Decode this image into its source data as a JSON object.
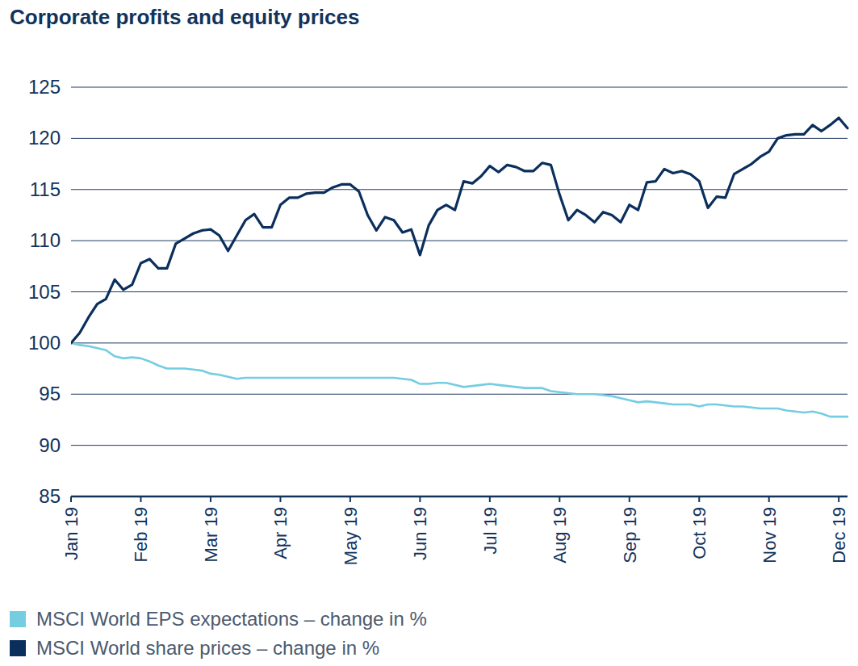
{
  "chart_data": {
    "type": "line",
    "title": "Corporate profits and equity prices",
    "categories": [
      "Jan 19",
      null,
      null,
      null,
      null,
      null,
      null,
      null,
      "Feb 19",
      null,
      null,
      null,
      null,
      null,
      null,
      null,
      "Mar 19",
      null,
      null,
      null,
      null,
      null,
      null,
      null,
      "Apr 19",
      null,
      null,
      null,
      null,
      null,
      null,
      null,
      "May 19",
      null,
      null,
      null,
      null,
      null,
      null,
      null,
      "Jun 19",
      null,
      null,
      null,
      null,
      null,
      null,
      null,
      "Jul 19",
      null,
      null,
      null,
      null,
      null,
      null,
      null,
      "Aug 19",
      null,
      null,
      null,
      null,
      null,
      null,
      null,
      "Sep 19",
      null,
      null,
      null,
      null,
      null,
      null,
      null,
      "Oct 19",
      null,
      null,
      null,
      null,
      null,
      null,
      null,
      "Nov 19",
      null,
      null,
      null,
      null,
      null,
      null,
      null,
      "Dec 19",
      null
    ],
    "series": [
      {
        "name": "MSCI World EPS expectations – change in %",
        "color": "#74cde1",
        "values": [
          100,
          99.8,
          99.7,
          99.5,
          99.3,
          98.7,
          98.5,
          98.6,
          98.5,
          98.2,
          97.8,
          97.5,
          97.5,
          97.5,
          97.4,
          97.3,
          97.0,
          96.9,
          96.7,
          96.5,
          96.6,
          96.6,
          96.6,
          96.6,
          96.6,
          96.6,
          96.6,
          96.6,
          96.6,
          96.6,
          96.6,
          96.6,
          96.6,
          96.6,
          96.6,
          96.6,
          96.6,
          96.6,
          96.5,
          96.4,
          96.0,
          96.0,
          96.1,
          96.1,
          95.9,
          95.7,
          95.8,
          95.9,
          96.0,
          95.9,
          95.8,
          95.7,
          95.6,
          95.6,
          95.6,
          95.3,
          95.2,
          95.1,
          95.0,
          95.0,
          95.0,
          94.9,
          94.8,
          94.6,
          94.4,
          94.2,
          94.3,
          94.2,
          94.1,
          94.0,
          94.0,
          94.0,
          93.8,
          94.0,
          94.0,
          93.9,
          93.8,
          93.8,
          93.7,
          93.6,
          93.6,
          93.6,
          93.4,
          93.3,
          93.2,
          93.3,
          93.1,
          92.8,
          92.8,
          92.8
        ]
      },
      {
        "name": "MSCI World share prices – change in %",
        "color": "#0b2f5c",
        "values": [
          100,
          101,
          102.5,
          103.8,
          104.3,
          106.2,
          105.2,
          105.7,
          107.8,
          108.2,
          107.3,
          107.3,
          109.7,
          110.2,
          110.7,
          111,
          111.1,
          110.5,
          109,
          110.5,
          112,
          112.6,
          111.3,
          111.3,
          113.5,
          114.2,
          114.2,
          114.6,
          114.7,
          114.7,
          115.2,
          115.5,
          115.5,
          114.8,
          112.5,
          111,
          112.3,
          112,
          110.8,
          111.1,
          108.6,
          111.5,
          113,
          113.5,
          113,
          115.8,
          115.6,
          116.3,
          117.3,
          116.7,
          117.4,
          117.2,
          116.8,
          116.8,
          117.6,
          117.4,
          114.5,
          112,
          113,
          112.5,
          111.8,
          112.8,
          112.5,
          111.8,
          113.5,
          113,
          115.7,
          115.8,
          117,
          116.6,
          116.8,
          116.5,
          115.8,
          113.2,
          114.3,
          114.2,
          116.5,
          117,
          117.5,
          118.2,
          118.7,
          120,
          120.3,
          120.4,
          120.4,
          121.3,
          120.7,
          121.3,
          122,
          121
        ]
      }
    ],
    "ylim": [
      85,
      125
    ],
    "yticks": [
      85,
      90,
      95,
      100,
      105,
      110,
      115,
      120,
      125
    ],
    "grid": true,
    "legend": "bottom"
  }
}
